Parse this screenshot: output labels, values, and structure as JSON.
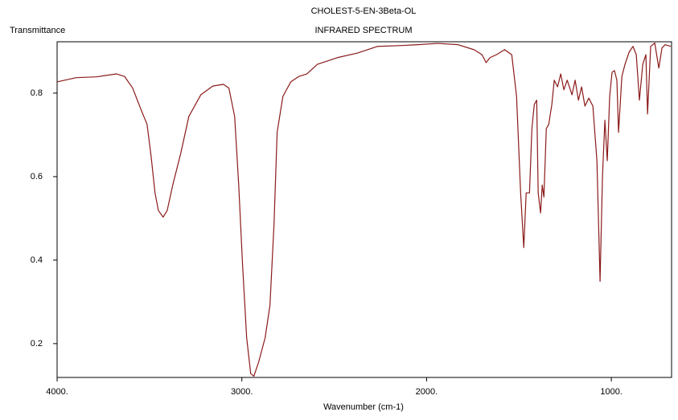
{
  "chart_data": {
    "type": "line",
    "title": "CHOLEST-5-EN-3Beta-OL",
    "subtitle": "INFRARED SPECTRUM",
    "y_label": "Transmittance",
    "x_label": "Wavenumber (cm-1)",
    "color": "#8b1a1a",
    "xlim": [
      4000,
      674
    ],
    "ylim": [
      0.119,
      0.923
    ],
    "xticks": [
      {
        "value": 4000,
        "label": "4000."
      },
      {
        "value": 3000,
        "label": "3000."
      },
      {
        "value": 2000,
        "label": "2000."
      },
      {
        "value": 1000,
        "label": "1000."
      }
    ],
    "yticks": [
      0.2,
      0.4,
      0.6,
      0.8
    ],
    "x": [
      4000,
      3896,
      3787,
      3678,
      3635,
      3591,
      3548,
      3513,
      3491,
      3470,
      3452,
      3426,
      3404,
      3374,
      3330,
      3287,
      3222,
      3157,
      3100,
      3070,
      3039,
      3017,
      2996,
      2974,
      2952,
      2935,
      2909,
      2874,
      2848,
      2826,
      2809,
      2778,
      2735,
      2691,
      2648,
      2591,
      2483,
      2374,
      2265,
      2135,
      2048,
      1939,
      1830,
      1743,
      1700,
      1678,
      1657,
      1622,
      1578,
      1539,
      1513,
      1491,
      1474,
      1461,
      1443,
      1430,
      1417,
      1404,
      1396,
      1383,
      1374,
      1365,
      1352,
      1339,
      1322,
      1309,
      1291,
      1274,
      1257,
      1239,
      1213,
      1196,
      1178,
      1161,
      1143,
      1122,
      1100,
      1078,
      1061,
      1048,
      1035,
      1022,
      1009,
      996,
      983,
      970,
      961,
      943,
      926,
      904,
      883,
      865,
      848,
      830,
      813,
      804,
      787,
      765,
      743,
      726,
      709,
      678
    ],
    "values": [
      0.827,
      0.837,
      0.839,
      0.846,
      0.84,
      0.812,
      0.763,
      0.725,
      0.648,
      0.561,
      0.519,
      0.503,
      0.519,
      0.58,
      0.657,
      0.744,
      0.796,
      0.817,
      0.821,
      0.812,
      0.744,
      0.58,
      0.388,
      0.214,
      0.128,
      0.122,
      0.156,
      0.214,
      0.291,
      0.484,
      0.706,
      0.792,
      0.827,
      0.84,
      0.846,
      0.869,
      0.885,
      0.896,
      0.912,
      0.914,
      0.916,
      0.919,
      0.916,
      0.904,
      0.892,
      0.873,
      0.885,
      0.892,
      0.904,
      0.892,
      0.792,
      0.561,
      0.43,
      0.561,
      0.561,
      0.715,
      0.773,
      0.783,
      0.561,
      0.513,
      0.58,
      0.551,
      0.715,
      0.725,
      0.773,
      0.831,
      0.815,
      0.846,
      0.808,
      0.831,
      0.796,
      0.831,
      0.783,
      0.815,
      0.769,
      0.788,
      0.769,
      0.638,
      0.349,
      0.6,
      0.735,
      0.638,
      0.792,
      0.85,
      0.854,
      0.831,
      0.706,
      0.84,
      0.869,
      0.898,
      0.912,
      0.892,
      0.783,
      0.869,
      0.892,
      0.75,
      0.912,
      0.92,
      0.86,
      0.908,
      0.916,
      0.912
    ]
  }
}
